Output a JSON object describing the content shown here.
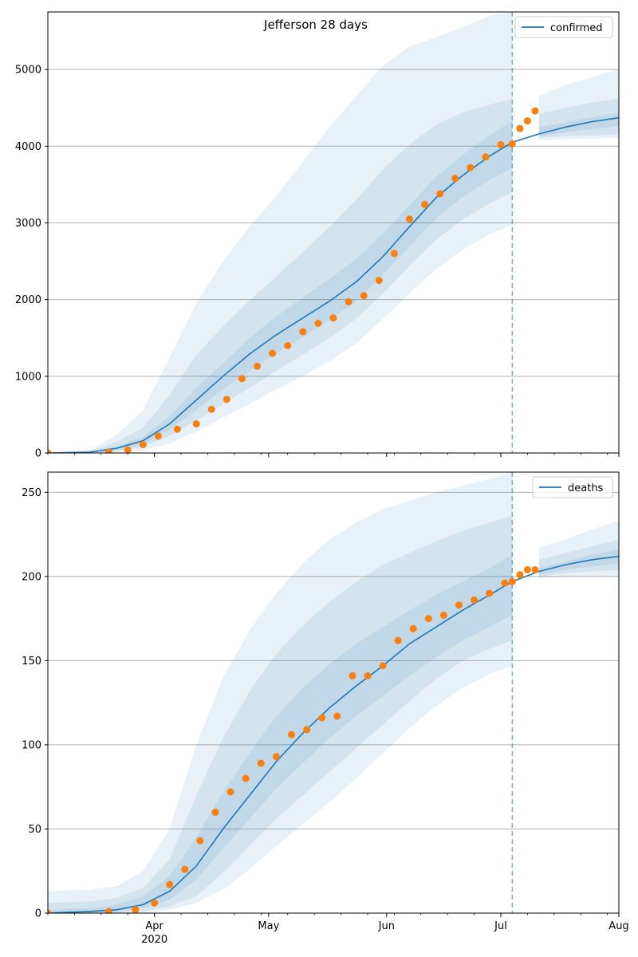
{
  "figure": {
    "title": "Jefferson 28 days"
  },
  "chart_data": [
    {
      "type": "line",
      "title": "Jefferson 28 days",
      "legend": {
        "label": "confirmed",
        "placement": "top-right"
      },
      "x_range": [
        "2020-03-04",
        "2020-08-01"
      ],
      "x_ticks": [
        {
          "date": "2020-04-01",
          "label": "Apr",
          "sublabel": "2020"
        },
        {
          "date": "2020-05-01",
          "label": "May"
        },
        {
          "date": "2020-06-01",
          "label": "Jun"
        },
        {
          "date": "2020-07-01",
          "label": "Jul"
        },
        {
          "date": "2020-08-01",
          "label": "Aug"
        }
      ],
      "ylim": [
        0,
        5750
      ],
      "y_ticks": [
        0,
        1000,
        2000,
        3000,
        4000,
        5000
      ],
      "grid": "horizontal",
      "forecast_start": "2020-07-04",
      "series": [
        {
          "name": "confirmed",
          "role": "model median",
          "x": [
            "2020-03-04",
            "2020-03-15",
            "2020-03-22",
            "2020-03-29",
            "2020-04-05",
            "2020-04-12",
            "2020-04-19",
            "2020-04-26",
            "2020-05-03",
            "2020-05-10",
            "2020-05-17",
            "2020-05-24",
            "2020-05-31",
            "2020-06-07",
            "2020-06-14",
            "2020-06-21",
            "2020-06-28",
            "2020-07-04",
            "2020-07-11",
            "2020-07-18",
            "2020-07-25",
            "2020-08-01"
          ],
          "y": [
            0,
            10,
            60,
            160,
            380,
            690,
            1000,
            1290,
            1540,
            1760,
            1980,
            2230,
            2560,
            2950,
            3330,
            3620,
            3870,
            4050,
            4160,
            4250,
            4320,
            4370
          ]
        },
        {
          "name": "observed",
          "role": "observed points",
          "x": [
            "2020-03-04",
            "2020-03-20",
            "2020-03-25",
            "2020-03-29",
            "2020-04-02",
            "2020-04-07",
            "2020-04-12",
            "2020-04-16",
            "2020-04-20",
            "2020-04-24",
            "2020-04-28",
            "2020-05-02",
            "2020-05-06",
            "2020-05-10",
            "2020-05-14",
            "2020-05-18",
            "2020-05-22",
            "2020-05-26",
            "2020-05-30",
            "2020-06-03",
            "2020-06-07",
            "2020-06-11",
            "2020-06-15",
            "2020-06-19",
            "2020-06-23",
            "2020-06-27",
            "2020-07-01",
            "2020-07-04",
            "2020-07-06",
            "2020-07-08",
            "2020-07-10"
          ],
          "y": [
            0,
            10,
            40,
            110,
            220,
            310,
            380,
            570,
            700,
            970,
            1130,
            1300,
            1400,
            1580,
            1690,
            1760,
            1970,
            2050,
            2250,
            2600,
            3050,
            3240,
            3380,
            3580,
            3720,
            3860,
            4020,
            4030,
            4230,
            4330,
            4460
          ]
        }
      ],
      "bands": [
        {
          "level": "outer",
          "x": [
            "2020-03-04",
            "2020-03-15",
            "2020-03-22",
            "2020-03-29",
            "2020-04-05",
            "2020-04-12",
            "2020-04-19",
            "2020-04-26",
            "2020-05-03",
            "2020-05-10",
            "2020-05-17",
            "2020-05-24",
            "2020-05-31",
            "2020-06-07",
            "2020-06-14",
            "2020-06-21",
            "2020-06-28",
            "2020-07-04",
            "2020-07-11",
            "2020-07-18",
            "2020-07-25",
            "2020-08-01"
          ],
          "lower": [
            0,
            0,
            10,
            40,
            120,
            280,
            460,
            640,
            830,
            1000,
            1200,
            1430,
            1750,
            2080,
            2400,
            2650,
            2850,
            2970,
            4080,
            4090,
            4100,
            4110
          ],
          "upper": [
            0,
            40,
            230,
            560,
            1250,
            1950,
            2500,
            2950,
            3350,
            3800,
            4250,
            4650,
            5050,
            5300,
            5420,
            5550,
            5700,
            5750,
            4650,
            4800,
            4900,
            5000
          ]
        },
        {
          "level": "middle",
          "x": [
            "2020-03-04",
            "2020-03-15",
            "2020-03-22",
            "2020-03-29",
            "2020-04-05",
            "2020-04-12",
            "2020-04-19",
            "2020-04-26",
            "2020-05-03",
            "2020-05-10",
            "2020-05-17",
            "2020-05-24",
            "2020-05-31",
            "2020-06-07",
            "2020-06-14",
            "2020-06-21",
            "2020-06-28",
            "2020-07-04",
            "2020-07-11",
            "2020-07-18",
            "2020-07-25",
            "2020-08-01"
          ],
          "lower": [
            0,
            0,
            20,
            80,
            220,
            420,
            640,
            850,
            1070,
            1280,
            1500,
            1750,
            2080,
            2440,
            2780,
            3050,
            3250,
            3400,
            4110,
            4130,
            4140,
            4150
          ],
          "upper": [
            0,
            25,
            140,
            330,
            760,
            1280,
            1650,
            1990,
            2300,
            2620,
            2950,
            3300,
            3700,
            4020,
            4280,
            4440,
            4540,
            4620,
            4420,
            4500,
            4570,
            4620
          ]
        },
        {
          "level": "inner",
          "x": [
            "2020-03-04",
            "2020-03-15",
            "2020-03-22",
            "2020-03-29",
            "2020-04-05",
            "2020-04-12",
            "2020-04-19",
            "2020-04-26",
            "2020-05-03",
            "2020-05-10",
            "2020-05-17",
            "2020-05-24",
            "2020-05-31",
            "2020-06-07",
            "2020-06-14",
            "2020-06-21",
            "2020-06-28",
            "2020-07-04",
            "2020-07-11",
            "2020-07-18",
            "2020-07-25",
            "2020-08-01"
          ],
          "lower": [
            0,
            5,
            40,
            120,
            300,
            560,
            830,
            1070,
            1300,
            1510,
            1730,
            1980,
            2320,
            2690,
            3060,
            3340,
            3560,
            3720,
            4130,
            4180,
            4230,
            4260
          ],
          "upper": [
            0,
            15,
            80,
            210,
            480,
            850,
            1170,
            1500,
            1780,
            2030,
            2270,
            2530,
            2860,
            3230,
            3600,
            3890,
            4140,
            4330,
            4250,
            4310,
            4380,
            4430
          ]
        }
      ]
    },
    {
      "type": "line",
      "title": "",
      "legend": {
        "label": "deaths",
        "placement": "top-right"
      },
      "x_range": [
        "2020-03-04",
        "2020-08-01"
      ],
      "x_ticks": [
        {
          "date": "2020-04-01",
          "label": "Apr",
          "sublabel": "2020"
        },
        {
          "date": "2020-05-01",
          "label": "May"
        },
        {
          "date": "2020-06-01",
          "label": "Jun"
        },
        {
          "date": "2020-07-01",
          "label": "Jul"
        },
        {
          "date": "2020-08-01",
          "label": "Aug"
        }
      ],
      "ylim": [
        0,
        262
      ],
      "y_ticks": [
        0,
        50,
        100,
        150,
        200,
        250
      ],
      "grid": "horizontal",
      "forecast_start": "2020-07-04",
      "series": [
        {
          "name": "deaths",
          "role": "model median",
          "x": [
            "2020-03-04",
            "2020-03-15",
            "2020-03-22",
            "2020-03-29",
            "2020-04-05",
            "2020-04-12",
            "2020-04-19",
            "2020-04-26",
            "2020-05-03",
            "2020-05-10",
            "2020-05-17",
            "2020-05-24",
            "2020-05-31",
            "2020-06-07",
            "2020-06-14",
            "2020-06-21",
            "2020-06-28",
            "2020-07-04",
            "2020-07-11",
            "2020-07-18",
            "2020-07-25",
            "2020-08-01"
          ],
          "y": [
            0,
            1,
            2,
            5,
            13,
            28,
            50,
            70,
            90,
            107,
            122,
            135,
            147,
            160,
            170,
            180,
            189,
            197,
            203,
            207,
            210,
            212
          ]
        },
        {
          "name": "observed",
          "role": "observed points",
          "x": [
            "2020-03-04",
            "2020-03-20",
            "2020-03-27",
            "2020-04-01",
            "2020-04-05",
            "2020-04-09",
            "2020-04-13",
            "2020-04-17",
            "2020-04-21",
            "2020-04-25",
            "2020-04-29",
            "2020-05-03",
            "2020-05-07",
            "2020-05-11",
            "2020-05-15",
            "2020-05-19",
            "2020-05-23",
            "2020-05-27",
            "2020-05-31",
            "2020-06-04",
            "2020-06-08",
            "2020-06-12",
            "2020-06-16",
            "2020-06-20",
            "2020-06-24",
            "2020-06-28",
            "2020-07-02",
            "2020-07-04",
            "2020-07-06",
            "2020-07-08",
            "2020-07-10"
          ],
          "y": [
            0,
            1,
            2,
            6,
            17,
            26,
            43,
            60,
            72,
            80,
            89,
            93,
            106,
            109,
            116,
            117,
            141,
            141,
            147,
            162,
            169,
            175,
            177,
            183,
            186,
            190,
            196,
            197,
            201,
            204,
            204
          ]
        }
      ],
      "bands": [
        {
          "level": "outer",
          "x": [
            "2020-03-04",
            "2020-03-15",
            "2020-03-22",
            "2020-03-29",
            "2020-04-05",
            "2020-04-12",
            "2020-04-19",
            "2020-04-26",
            "2020-05-03",
            "2020-05-10",
            "2020-05-17",
            "2020-05-24",
            "2020-05-31",
            "2020-06-07",
            "2020-06-14",
            "2020-06-21",
            "2020-06-28",
            "2020-07-04",
            "2020-07-11",
            "2020-07-18",
            "2020-07-25",
            "2020-08-01"
          ],
          "lower": [
            0,
            0,
            0,
            0,
            2,
            6,
            14,
            26,
            40,
            53,
            66,
            80,
            95,
            110,
            123,
            134,
            142,
            147,
            199,
            200,
            200,
            200
          ],
          "upper": [
            13,
            14,
            16,
            25,
            50,
            100,
            140,
            168,
            190,
            208,
            222,
            232,
            240,
            245,
            250,
            254,
            258,
            262,
            217,
            222,
            228,
            233
          ]
        },
        {
          "level": "middle",
          "x": [
            "2020-03-04",
            "2020-03-15",
            "2020-03-22",
            "2020-03-29",
            "2020-04-05",
            "2020-04-12",
            "2020-04-19",
            "2020-04-26",
            "2020-05-03",
            "2020-05-10",
            "2020-05-17",
            "2020-05-24",
            "2020-05-31",
            "2020-06-07",
            "2020-06-14",
            "2020-06-21",
            "2020-06-28",
            "2020-07-04",
            "2020-07-11",
            "2020-07-18",
            "2020-07-25",
            "2020-08-01"
          ],
          "lower": [
            0,
            0,
            0,
            1,
            4,
            10,
            24,
            40,
            56,
            70,
            84,
            98,
            112,
            126,
            139,
            150,
            157,
            162,
            200,
            202,
            203,
            204
          ],
          "upper": [
            6,
            7,
            9,
            15,
            32,
            70,
            104,
            132,
            154,
            171,
            185,
            197,
            207,
            214,
            221,
            227,
            232,
            236,
            210,
            214,
            218,
            222
          ]
        },
        {
          "level": "inner",
          "x": [
            "2020-03-04",
            "2020-03-15",
            "2020-03-22",
            "2020-03-29",
            "2020-04-05",
            "2020-04-12",
            "2020-04-19",
            "2020-04-26",
            "2020-05-03",
            "2020-05-10",
            "2020-05-17",
            "2020-05-24",
            "2020-05-31",
            "2020-06-07",
            "2020-06-14",
            "2020-06-21",
            "2020-06-28",
            "2020-07-04",
            "2020-07-11",
            "2020-07-18",
            "2020-07-25",
            "2020-08-01"
          ],
          "lower": [
            0,
            0,
            1,
            3,
            8,
            20,
            38,
            56,
            74,
            89,
            104,
            117,
            129,
            141,
            152,
            162,
            170,
            177,
            201,
            204,
            206,
            208
          ],
          "upper": [
            2,
            3,
            5,
            10,
            22,
            45,
            72,
            95,
            117,
            134,
            148,
            160,
            170,
            180,
            189,
            197,
            205,
            213,
            205,
            209,
            213,
            216
          ]
        }
      ]
    }
  ],
  "colors": {
    "line": "#1f77b4",
    "points": "#ff7f0e",
    "band": "#1f77b4",
    "grid": "#b0b0b0"
  }
}
